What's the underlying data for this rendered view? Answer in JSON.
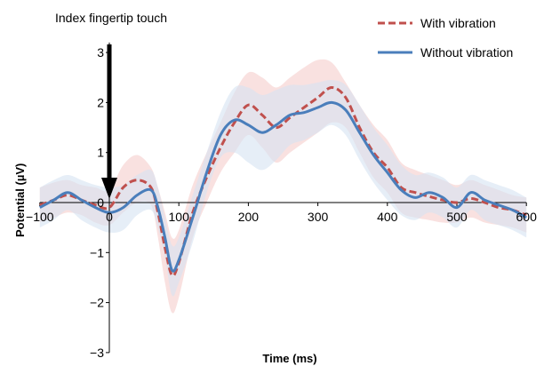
{
  "chart_data": {
    "type": "line",
    "xlabel": "Time (ms)",
    "ylabel": "Potential (µV)",
    "xlim": [
      -100,
      600
    ],
    "ylim": [
      -3,
      3.2
    ],
    "x_ticks": [
      -100,
      0,
      100,
      200,
      300,
      400,
      500,
      600
    ],
    "x_tick_labels": [
      "−100",
      "0",
      "100",
      "200",
      "300",
      "400",
      "500",
      "600"
    ],
    "y_ticks": [
      -3,
      -2,
      -1,
      0,
      1,
      2,
      3
    ],
    "y_tick_labels": [
      "−3",
      "−2",
      "−1",
      "0",
      "1",
      "2",
      "3"
    ],
    "legend_position": "top-right",
    "annotation": {
      "text": "Index fingertip touch",
      "x": 0
    },
    "series": [
      {
        "name": "With vibration",
        "color": "#c0504d",
        "style": "dashed",
        "band_color": "#f4c9c6",
        "x": [
          -100,
          -80,
          -60,
          -40,
          -20,
          0,
          20,
          40,
          60,
          70,
          80,
          90,
          100,
          120,
          140,
          160,
          180,
          200,
          220,
          240,
          260,
          280,
          300,
          320,
          340,
          360,
          380,
          400,
          420,
          440,
          460,
          480,
          500,
          520,
          540,
          560,
          580,
          600
        ],
        "y": [
          -0.05,
          0.05,
          0.15,
          0.05,
          -0.05,
          -0.1,
          0.3,
          0.45,
          0.3,
          -0.2,
          -0.9,
          -1.45,
          -1.2,
          -0.2,
          0.5,
          1.1,
          1.6,
          1.95,
          1.75,
          1.5,
          1.7,
          1.9,
          2.1,
          2.3,
          2.1,
          1.5,
          1.0,
          0.7,
          0.3,
          0.2,
          0.12,
          0.05,
          0.0,
          0.08,
          0.0,
          -0.1,
          -0.15,
          -0.25
        ],
        "upper": [
          0.3,
          0.4,
          0.45,
          0.35,
          0.3,
          0.25,
          0.75,
          0.95,
          0.7,
          0.3,
          -0.2,
          -0.7,
          -0.55,
          0.35,
          1.0,
          1.6,
          2.2,
          2.6,
          2.5,
          2.3,
          2.5,
          2.7,
          2.85,
          2.8,
          2.4,
          1.95,
          1.55,
          1.25,
          0.8,
          0.65,
          0.55,
          0.45,
          0.35,
          0.45,
          0.35,
          0.25,
          0.15,
          0.1
        ],
        "lower": [
          -0.4,
          -0.3,
          -0.2,
          -0.25,
          -0.4,
          -0.45,
          -0.2,
          0.0,
          -0.05,
          -0.7,
          -1.6,
          -2.2,
          -1.9,
          -0.7,
          0.0,
          0.6,
          1.0,
          1.35,
          1.1,
          0.8,
          1.0,
          1.2,
          1.4,
          1.6,
          1.5,
          1.0,
          0.5,
          0.2,
          -0.2,
          -0.3,
          -0.35,
          -0.4,
          -0.4,
          -0.3,
          -0.4,
          -0.45,
          -0.5,
          -0.6
        ]
      },
      {
        "name": "Without vibration",
        "color": "#4a7ebb",
        "style": "solid",
        "band_color": "#d6e2f1",
        "x": [
          -100,
          -80,
          -60,
          -40,
          -20,
          0,
          20,
          40,
          60,
          70,
          80,
          90,
          100,
          120,
          140,
          160,
          180,
          200,
          220,
          240,
          260,
          280,
          300,
          320,
          340,
          360,
          380,
          400,
          420,
          440,
          460,
          480,
          500,
          520,
          540,
          560,
          580,
          600
        ],
        "y": [
          -0.1,
          0.05,
          0.2,
          0.05,
          -0.1,
          -0.2,
          -0.1,
          0.15,
          0.25,
          -0.1,
          -0.7,
          -1.35,
          -1.15,
          -0.3,
          0.6,
          1.35,
          1.65,
          1.55,
          1.4,
          1.55,
          1.75,
          1.8,
          1.9,
          2.0,
          1.85,
          1.4,
          0.95,
          0.6,
          0.25,
          0.1,
          0.2,
          0.1,
          -0.1,
          0.2,
          0.05,
          -0.05,
          -0.15,
          -0.3
        ],
        "upper": [
          0.3,
          0.45,
          0.55,
          0.45,
          0.35,
          0.3,
          0.35,
          0.55,
          0.65,
          0.3,
          -0.3,
          -0.85,
          -0.7,
          0.15,
          1.0,
          1.8,
          2.3,
          2.3,
          2.15,
          2.25,
          2.35,
          2.35,
          2.4,
          2.45,
          2.35,
          1.95,
          1.5,
          1.15,
          0.75,
          0.55,
          0.6,
          0.5,
          0.3,
          0.55,
          0.45,
          0.35,
          0.25,
          0.1
        ],
        "lower": [
          -0.5,
          -0.35,
          -0.15,
          -0.35,
          -0.5,
          -0.6,
          -0.55,
          -0.25,
          -0.15,
          -0.5,
          -1.1,
          -1.85,
          -1.6,
          -0.8,
          0.2,
          0.9,
          1.0,
          0.8,
          0.65,
          0.85,
          1.15,
          1.25,
          1.4,
          1.55,
          1.35,
          0.85,
          0.4,
          0.05,
          -0.25,
          -0.35,
          -0.2,
          -0.3,
          -0.5,
          -0.15,
          -0.35,
          -0.45,
          -0.55,
          -0.7
        ]
      }
    ]
  }
}
